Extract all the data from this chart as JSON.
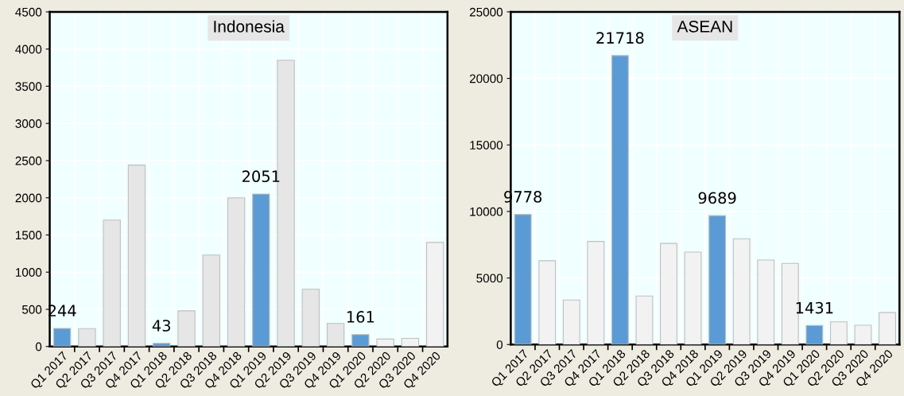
{
  "chart_data": [
    {
      "type": "bar",
      "title": "Indonesia",
      "categories": [
        "Q1 2017",
        "Q2 2017",
        "Q3 2017",
        "Q4 2017",
        "Q1 2018",
        "Q2 2018",
        "Q3 2018",
        "Q4 2018",
        "Q1 2019",
        "Q2 2019",
        "Q3 2019",
        "Q4 2019",
        "Q1 2020",
        "Q2 2020",
        "Q3 2020",
        "Q4 2020"
      ],
      "values": [
        244,
        240,
        1700,
        2440,
        43,
        480,
        1230,
        2000,
        2051,
        3850,
        770,
        310,
        161,
        100,
        110,
        1400
      ],
      "colors": [
        "#5b9bd5",
        "#e6e6e6",
        "#e6e6e6",
        "#e6e6e6",
        "#5b9bd5",
        "#e6e6e6",
        "#e6e6e6",
        "#e6e6e6",
        "#5b9bd5",
        "#e6e6e6",
        "#e6e6e6",
        "#e6e6e6",
        "#5b9bd5",
        "#f2f2f2",
        "#f2f2f2",
        "#f2f2f2"
      ],
      "value_labels": [
        "244",
        null,
        null,
        null,
        "43",
        null,
        null,
        null,
        "2051",
        null,
        null,
        null,
        "161",
        null,
        null,
        null
      ],
      "ylim": [
        0,
        4500
      ],
      "yticks": [
        0,
        500,
        1000,
        1500,
        2000,
        2500,
        3000,
        3500,
        4000,
        4500
      ],
      "grid": true
    },
    {
      "type": "bar",
      "title": "ASEAN",
      "categories": [
        "Q1 2017",
        "Q2 2017",
        "Q3 2017",
        "Q4 2017",
        "Q1 2018",
        "Q2 2018",
        "Q3 2018",
        "Q4 2018",
        "Q1 2019",
        "Q2 2019",
        "Q3 2019",
        "Q4 2019",
        "Q1 2020",
        "Q2 2020",
        "Q3 2020",
        "Q4 2020"
      ],
      "values": [
        9778,
        6300,
        3350,
        7750,
        21718,
        3650,
        7600,
        6950,
        9689,
        7950,
        6350,
        6100,
        1431,
        1700,
        1450,
        2400
      ],
      "colors": [
        "#5b9bd5",
        "#f2f2f2",
        "#f2f2f2",
        "#f2f2f2",
        "#5b9bd5",
        "#f2f2f2",
        "#f2f2f2",
        "#f2f2f2",
        "#5b9bd5",
        "#f2f2f2",
        "#f2f2f2",
        "#f2f2f2",
        "#5b9bd5",
        "#f2f2f2",
        "#f2f2f2",
        "#f2f2f2"
      ],
      "value_labels": [
        "9778",
        null,
        null,
        null,
        "21718",
        null,
        null,
        null,
        "9689",
        null,
        null,
        null,
        "1431",
        null,
        null,
        null
      ],
      "ylim": [
        0,
        25000
      ],
      "yticks": [
        0,
        5000,
        10000,
        15000,
        20000,
        25000
      ],
      "grid": true
    }
  ]
}
